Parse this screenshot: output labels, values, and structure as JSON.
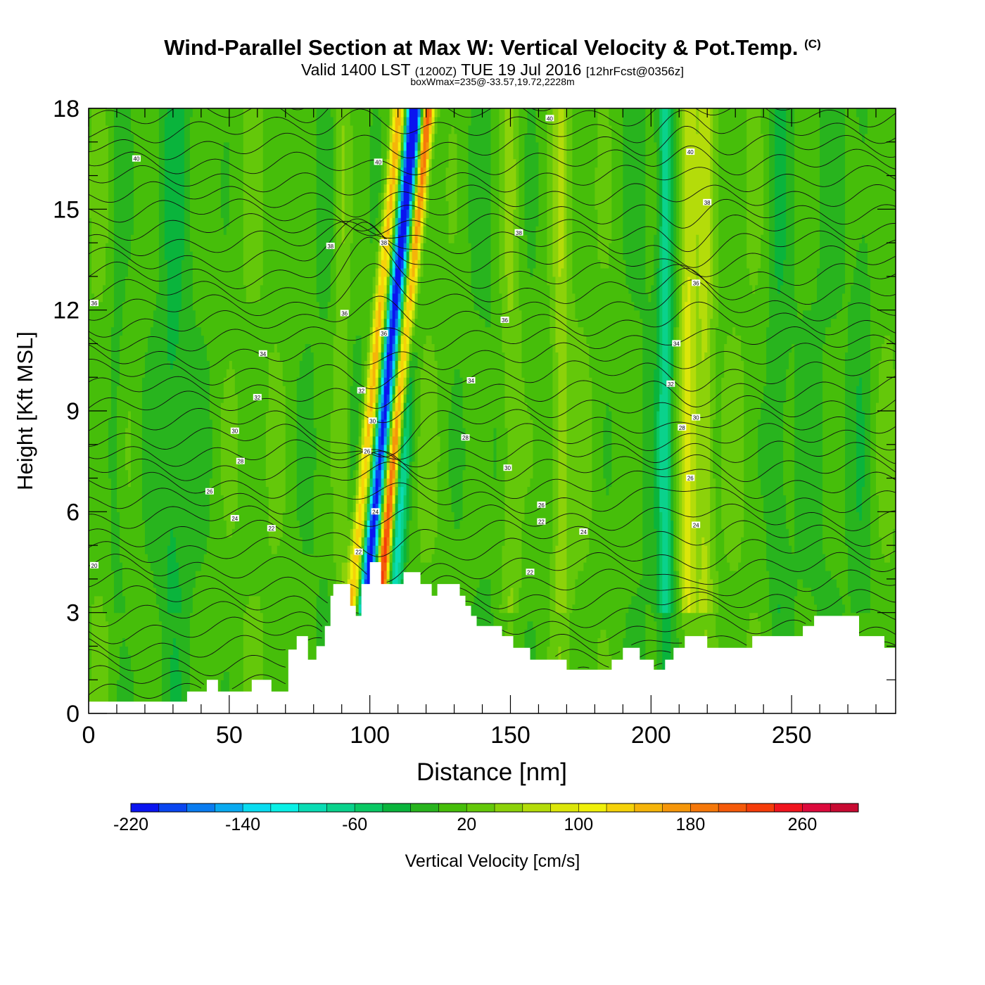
{
  "header": {
    "title_main": "Wind-Parallel Section at Max W: Vertical Velocity & Pot.Temp.",
    "title_mark": "(C)",
    "valid_prefix": "Valid 1400 LST",
    "valid_utc": "(1200Z)",
    "valid_date": "TUE 19 Jul 2016",
    "valid_fcst": "[12hrFcst@0356z]",
    "box_info": "boxWmax=235@-33.57,19.72,2228m"
  },
  "chart_data": {
    "type": "heatmap",
    "xlabel": "Distance [nm]",
    "ylabel": "Height [Kft MSL]",
    "xlim": [
      0,
      287
    ],
    "ylim": [
      0,
      18
    ],
    "x_ticks": [
      "0",
      "50",
      "100",
      "150",
      "200",
      "250"
    ],
    "x_tick_values": [
      0,
      50,
      100,
      150,
      200,
      250
    ],
    "y_ticks": [
      "0",
      "3",
      "6",
      "9",
      "12",
      "15",
      "18"
    ],
    "y_tick_values": [
      0,
      3,
      6,
      9,
      12,
      15,
      18
    ],
    "grid": false,
    "colorbar": {
      "label": "Vertical Velocity [cm/s]",
      "min": -220,
      "max": 300,
      "step": 20,
      "tick_labels": [
        "-220",
        "-140",
        "-60",
        "20",
        "100",
        "180",
        "260"
      ],
      "tick_values": [
        -220,
        -140,
        -60,
        20,
        100,
        180,
        260
      ],
      "colors": [
        "#0a14f0",
        "#0a46f0",
        "#0a7cf0",
        "#0aaaf0",
        "#0adcf0",
        "#0af0e6",
        "#0adcb4",
        "#0ad28c",
        "#0ac864",
        "#0ab43c",
        "#28b41e",
        "#46be0a",
        "#64c80a",
        "#8cd20a",
        "#b4dc0a",
        "#dce60a",
        "#f0f00a",
        "#f5d20a",
        "#f5b40a",
        "#f5960a",
        "#f5780a",
        "#f55a0a",
        "#f53c0a",
        "#f0141e",
        "#dc0a3c",
        "#c80a32"
      ]
    },
    "terrain_kft": [
      [
        0,
        0.35
      ],
      [
        35,
        0.35
      ],
      [
        35,
        0.65
      ],
      [
        42,
        0.65
      ],
      [
        42,
        1.0
      ],
      [
        46,
        1.0
      ],
      [
        46,
        0.65
      ],
      [
        58,
        0.65
      ],
      [
        58,
        1.0
      ],
      [
        65,
        1.0
      ],
      [
        65,
        0.65
      ],
      [
        71,
        0.65
      ],
      [
        71,
        1.9
      ],
      [
        74,
        1.9
      ],
      [
        74,
        2.3
      ],
      [
        78,
        2.3
      ],
      [
        78,
        1.6
      ],
      [
        81,
        1.6
      ],
      [
        81,
        2.0
      ],
      [
        84,
        2.0
      ],
      [
        84,
        2.6
      ],
      [
        86,
        2.6
      ],
      [
        86,
        3.5
      ],
      [
        87,
        3.5
      ],
      [
        87,
        3.85
      ],
      [
        93,
        3.85
      ],
      [
        93,
        3.2
      ],
      [
        95,
        3.2
      ],
      [
        95,
        2.9
      ],
      [
        97,
        2.9
      ],
      [
        97,
        3.85
      ],
      [
        100,
        3.85
      ],
      [
        100,
        4.5
      ],
      [
        104,
        4.5
      ],
      [
        104,
        3.85
      ],
      [
        106,
        3.85
      ],
      [
        106,
        3.85
      ],
      [
        112,
        3.85
      ],
      [
        112,
        4.2
      ],
      [
        118,
        4.2
      ],
      [
        118,
        3.85
      ],
      [
        122,
        3.85
      ],
      [
        122,
        3.5
      ],
      [
        124,
        3.5
      ],
      [
        124,
        3.85
      ],
      [
        132,
        3.85
      ],
      [
        132,
        3.5
      ],
      [
        134,
        3.5
      ],
      [
        134,
        3.2
      ],
      [
        136,
        3.2
      ],
      [
        136,
        2.9
      ],
      [
        138,
        2.9
      ],
      [
        138,
        2.6
      ],
      [
        147,
        2.6
      ],
      [
        147,
        2.3
      ],
      [
        151,
        2.3
      ],
      [
        151,
        1.95
      ],
      [
        157,
        1.95
      ],
      [
        157,
        1.6
      ],
      [
        170,
        1.6
      ],
      [
        170,
        1.3
      ],
      [
        186,
        1.3
      ],
      [
        186,
        1.6
      ],
      [
        190,
        1.6
      ],
      [
        190,
        1.95
      ],
      [
        196,
        1.95
      ],
      [
        196,
        1.6
      ],
      [
        201,
        1.6
      ],
      [
        201,
        1.3
      ],
      [
        205,
        1.3
      ],
      [
        205,
        1.6
      ],
      [
        208,
        1.6
      ],
      [
        208,
        1.95
      ],
      [
        212,
        1.95
      ],
      [
        212,
        2.3
      ],
      [
        220,
        2.3
      ],
      [
        220,
        1.95
      ],
      [
        236,
        1.95
      ],
      [
        236,
        2.3
      ],
      [
        254,
        2.3
      ],
      [
        254,
        2.6
      ],
      [
        258,
        2.6
      ],
      [
        258,
        2.9
      ],
      [
        274,
        2.9
      ],
      [
        274,
        2.3
      ],
      [
        283,
        2.3
      ],
      [
        283,
        1.95
      ],
      [
        287,
        1.95
      ]
    ],
    "w_features": [
      {
        "x": 94.5,
        "amp": 140,
        "sig": 2.3,
        "tilt": 0.12
      },
      {
        "x": 99.5,
        "amp": -230,
        "sig": 2.6,
        "tilt": 0.12
      },
      {
        "x": 104.5,
        "amp": 235,
        "sig": 2.3,
        "tilt": 0.12
      },
      {
        "x": 109,
        "amp": -110,
        "sig": 3.0,
        "tilt": 0.06
      },
      {
        "x": 90,
        "amp": 40,
        "sig": 3.0,
        "tilt": 0.0
      },
      {
        "x": 150,
        "amp": 40,
        "sig": 4.0,
        "tilt": 0.0
      },
      {
        "x": 205,
        "amp": -70,
        "sig": 2.5,
        "tilt": 0.0
      },
      {
        "x": 213,
        "amp": 80,
        "sig": 3.0,
        "tilt": 0.0
      },
      {
        "x": 219,
        "amp": 55,
        "sig": 3.0,
        "tilt": 0.0
      },
      {
        "x": 168,
        "amp": 40,
        "sig": 3.0,
        "tilt": 0.0
      },
      {
        "x": 10,
        "amp": -20,
        "sig": 3.0,
        "tilt": 0.0
      },
      {
        "x": 30,
        "amp": -25,
        "sig": 4.0,
        "tilt": 0.0
      },
      {
        "x": 245,
        "amp": -25,
        "sig": 4.0,
        "tilt": 0.0
      },
      {
        "x": 275,
        "amp": -20,
        "sig": 4.0,
        "tilt": 0.0
      }
    ],
    "theta_contours": {
      "count": 38,
      "contour_labels": [
        {
          "text": "40",
          "x": 17,
          "y": 16.5
        },
        {
          "text": "40",
          "x": 103,
          "y": 16.4
        },
        {
          "text": "40",
          "x": 164,
          "y": 17.7
        },
        {
          "text": "40",
          "x": 214,
          "y": 16.7
        },
        {
          "text": "38",
          "x": 86,
          "y": 13.9
        },
        {
          "text": "38",
          "x": 105,
          "y": 14.0
        },
        {
          "text": "38",
          "x": 153,
          "y": 14.3
        },
        {
          "text": "38",
          "x": 220,
          "y": 15.2
        },
        {
          "text": "36",
          "x": 2,
          "y": 12.2
        },
        {
          "text": "36",
          "x": 91,
          "y": 11.9
        },
        {
          "text": "36",
          "x": 105,
          "y": 11.3
        },
        {
          "text": "36",
          "x": 148,
          "y": 11.7
        },
        {
          "text": "36",
          "x": 216,
          "y": 12.8
        },
        {
          "text": "34",
          "x": 62,
          "y": 10.7
        },
        {
          "text": "34",
          "x": 136,
          "y": 9.9
        },
        {
          "text": "34",
          "x": 209,
          "y": 11.0
        },
        {
          "text": "32",
          "x": 60,
          "y": 9.4
        },
        {
          "text": "32",
          "x": 97,
          "y": 9.6
        },
        {
          "text": "32",
          "x": 207,
          "y": 9.8
        },
        {
          "text": "30",
          "x": 52,
          "y": 8.4
        },
        {
          "text": "30",
          "x": 101,
          "y": 8.7
        },
        {
          "text": "30",
          "x": 149,
          "y": 7.3
        },
        {
          "text": "30",
          "x": 216,
          "y": 8.8
        },
        {
          "text": "28",
          "x": 54,
          "y": 7.5
        },
        {
          "text": "28",
          "x": 134,
          "y": 8.2
        },
        {
          "text": "28",
          "x": 211,
          "y": 8.5
        },
        {
          "text": "26",
          "x": 43,
          "y": 6.6
        },
        {
          "text": "26",
          "x": 99,
          "y": 7.8
        },
        {
          "text": "26",
          "x": 161,
          "y": 6.2
        },
        {
          "text": "26",
          "x": 214,
          "y": 7.0
        },
        {
          "text": "24",
          "x": 52,
          "y": 5.8
        },
        {
          "text": "24",
          "x": 102,
          "y": 6.0
        },
        {
          "text": "24",
          "x": 176,
          "y": 5.4
        },
        {
          "text": "24",
          "x": 216,
          "y": 5.6
        },
        {
          "text": "22",
          "x": 65,
          "y": 5.5
        },
        {
          "text": "22",
          "x": 96,
          "y": 4.8
        },
        {
          "text": "22",
          "x": 161,
          "y": 5.7
        },
        {
          "text": "22",
          "x": 157,
          "y": 4.2
        },
        {
          "text": "20",
          "x": 2,
          "y": 4.4
        }
      ]
    }
  }
}
